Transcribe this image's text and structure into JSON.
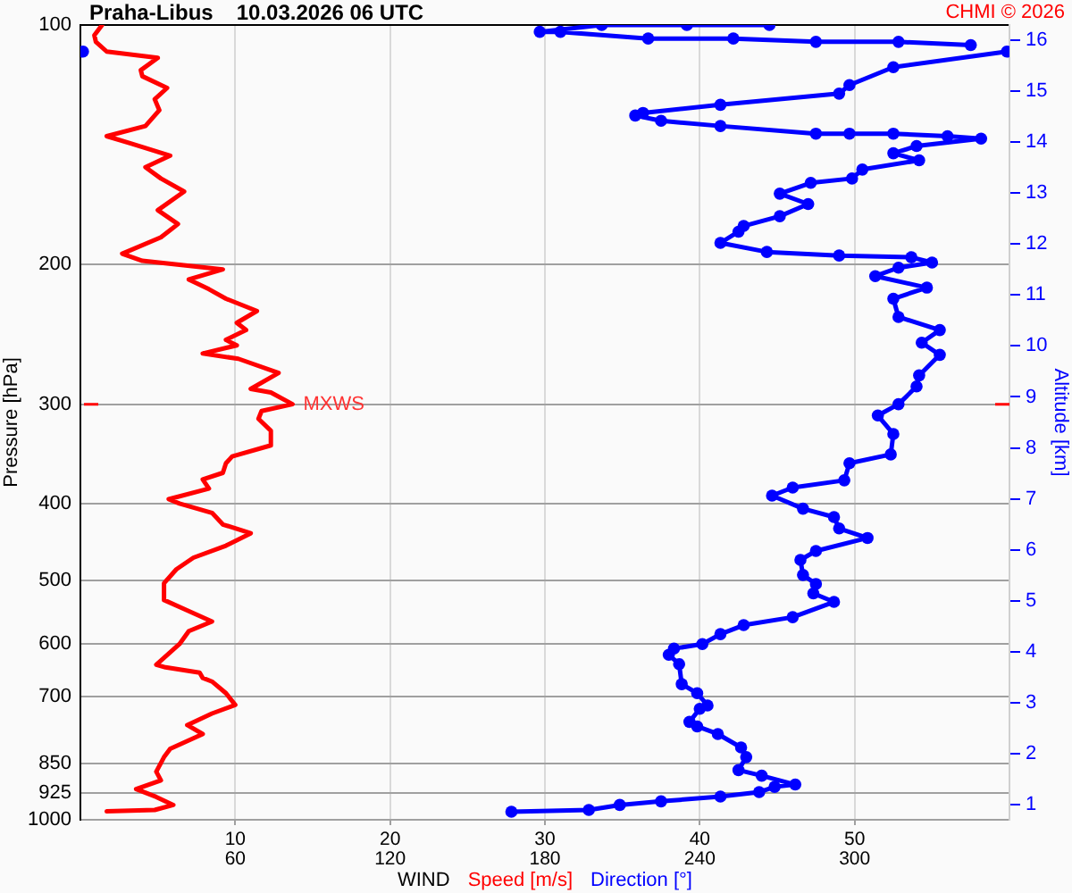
{
  "chart_data": {
    "type": "line",
    "title": "Praha-Libus",
    "subtitle": "10.03.2026 06 UTC",
    "xlabel": "WIND",
    "ylabel": "Pressure [hPa]",
    "y2label": "Altitude [km]",
    "annotations": [
      "CHMI © 2026",
      {
        "text": "MXWS",
        "x": 13.7,
        "y": 300
      }
    ],
    "xlim": [
      0,
      60
    ],
    "xticks": [
      10,
      20,
      30,
      40,
      50
    ],
    "x2lim": [
      0,
      360
    ],
    "x2ticks": [
      60,
      120,
      180,
      240,
      300
    ],
    "ylim": [
      1000,
      100
    ],
    "yticks": [
      100,
      200,
      300,
      400,
      500,
      600,
      700,
      850,
      925,
      1000
    ],
    "y2lim": [
      0.7,
      16.3
    ],
    "y2ticks": [
      1,
      2,
      3,
      4,
      5,
      6,
      7,
      8,
      9,
      10,
      11,
      12,
      13,
      14,
      15,
      16
    ],
    "log": true,
    "grid": true,
    "legend": "bottom",
    "series": [
      {
        "name": "Speed [m/s]",
        "color": "#ff0000",
        "type": "line",
        "marker": "none",
        "x": [
          1.4,
          0.9,
          1.0,
          1.7,
          5.0,
          3.9,
          4.0,
          5.6,
          4.8,
          5.1,
          4.2,
          1.7,
          3.3,
          5.8,
          4.2,
          5.2,
          6.7,
          5.0,
          6.3,
          5.2,
          2.7,
          4.0,
          9.2,
          7.0,
          8.3,
          9.4,
          11.4,
          10.1,
          10.7,
          9.4,
          10.1,
          7.9,
          10.2,
          12.8,
          11.0,
          12.3,
          13.7,
          11.7,
          11.5,
          12.3,
          12.3,
          9.8,
          9.4,
          9.2,
          7.9,
          8.3,
          5.7,
          6.4,
          8.5,
          9.2,
          11.0,
          9.4,
          7.3,
          6.2,
          5.4,
          5.4,
          6.7,
          8.5,
          7.0,
          6.4,
          4.9,
          5.5,
          7.7,
          7.9,
          8.5,
          9.4,
          10.0,
          8.5,
          6.9,
          7.9,
          5.8,
          5.4,
          4.9,
          5.2,
          3.6,
          4.9,
          6.0,
          4.8,
          1.7
        ],
        "values": [
          100,
          103,
          105,
          108,
          110,
          114,
          116,
          120,
          124,
          128,
          134,
          138,
          141,
          146,
          151,
          156,
          162,
          171,
          178,
          185,
          194,
          198,
          203,
          209,
          215,
          221,
          229,
          237,
          242,
          249,
          253,
          259,
          263,
          274,
          287,
          290,
          300,
          306,
          313,
          324,
          338,
          349,
          356,
          366,
          373,
          383,
          395,
          400,
          411,
          425,
          436,
          452,
          468,
          484,
          504,
          529,
          543,
          563,
          579,
          601,
          638,
          643,
          653,
          663,
          670,
          693,
          717,
          735,
          760,
          780,
          814,
          834,
          870,
          892,
          915,
          936,
          958,
          972,
          976
        ]
      },
      {
        "name": "Direction [°]",
        "color": "#0000ff",
        "type": "line",
        "marker": "circle",
        "axis": "x2",
        "x": [
          167,
          197,
          209,
          225,
          248,
          263,
          269,
          277,
          264,
          255,
          258,
          256,
          247,
          239,
          236,
          240,
          243,
          239,
          233,
          232,
          228,
          230,
          241,
          248,
          257,
          276,
          292,
          284,
          285,
          280,
          279,
          285,
          305,
          294,
          292,
          280,
          268,
          276,
          296,
          298,
          314,
          315,
          309,
          317,
          324,
          325,
          333,
          326,
          333,
          317,
          315,
          328,
          308,
          317,
          330,
          322,
          294,
          266,
          248,
          255,
          257,
          271,
          282,
          271,
          283,
          299,
          303,
          325,
          315,
          324,
          349,
          336,
          315,
          298,
          285,
          248,
          225,
          215,
          218,
          248,
          294,
          298,
          315,
          359,
          null,
          1,
          null,
          345,
          317,
          285,
          253,
          220,
          186,
          178,
          202,
          235,
          267
        ],
        "values": [
          977,
          972,
          958,
          948,
          935,
          923,
          909,
          903,
          880,
          866,
          834,
          811,
          780,
          763,
          753,
          725,
          718,
          693,
          675,
          637,
          620,
          609,
          601,
          584,
          569,
          556,
          532,
          519,
          505,
          492,
          471,
          459,
          442,
          430,
          416,
          406,
          391,
          382,
          374,
          356,
          347,
          327,
          310,
          300,
          285,
          276,
          260,
          251,
          242,
          233,
          221,
          214,
          207,
          202,
          199,
          196,
          195,
          193,
          188,
          182,
          179,
          174,
          168,
          163,
          158,
          156,
          152,
          148,
          145,
          142,
          139,
          138,
          137,
          137,
          137,
          134,
          132,
          130,
          129,
          126,
          122,
          119,
          113,
          108,
          null,
          108,
          null,
          106,
          105,
          105,
          104,
          104,
          102,
          102,
          100,
          100,
          100
        ]
      }
    ]
  }
}
